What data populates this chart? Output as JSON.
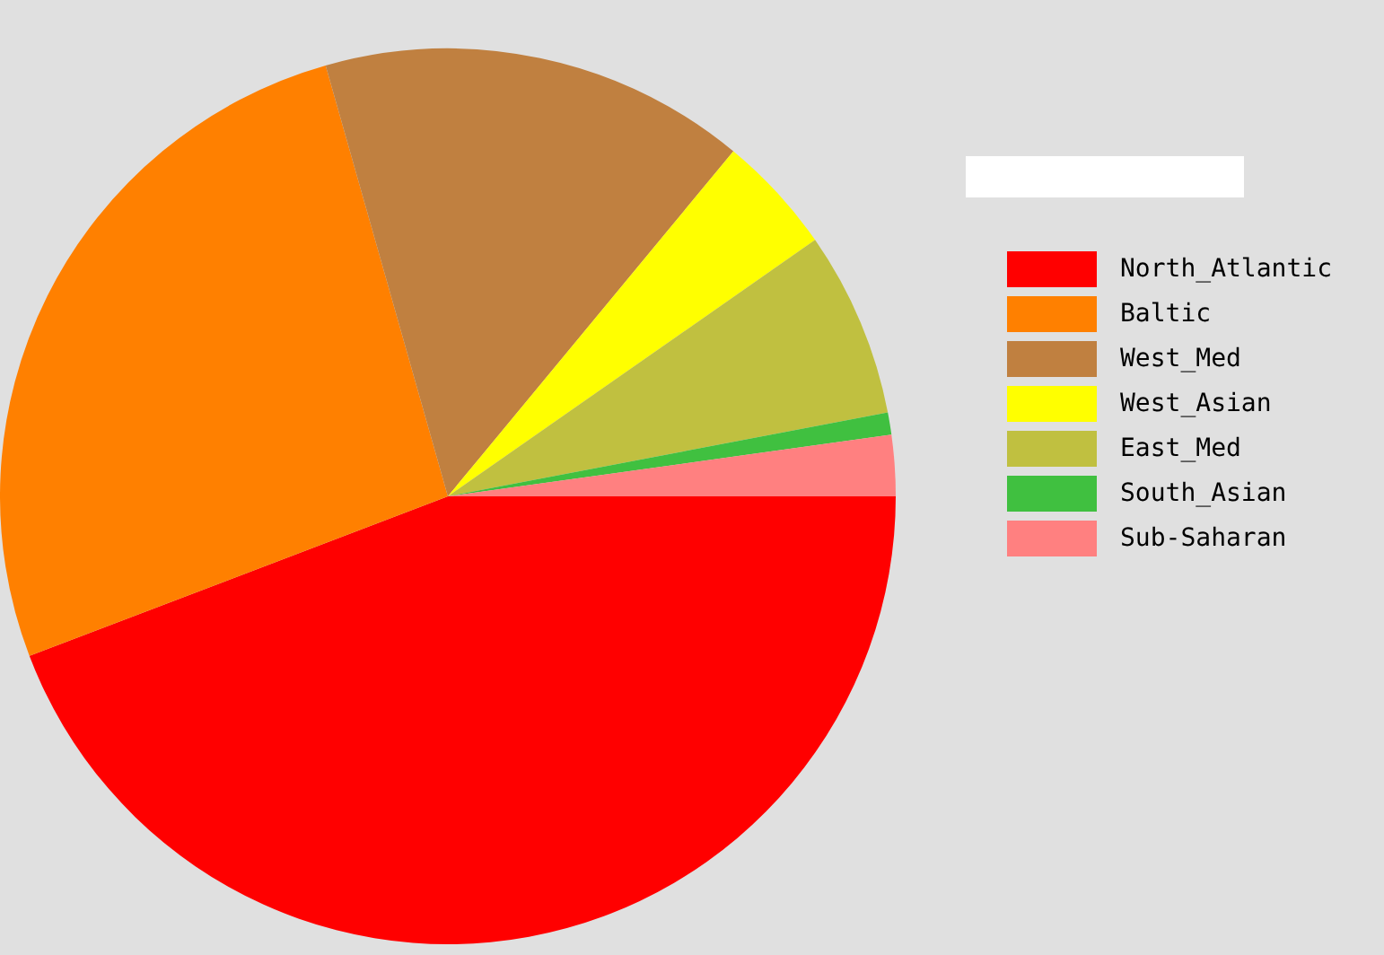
{
  "chart_data": {
    "type": "pie",
    "categories": [
      "North_Atlantic",
      "Baltic",
      "West_Med",
      "West_Asian",
      "East_Med",
      "South_Asian",
      "Sub-Saharan"
    ],
    "values": [
      44.2,
      26.4,
      15.4,
      4.3,
      6.7,
      0.8,
      2.2
    ],
    "colors": [
      "#ff0000",
      "#ff8000",
      "#c08040",
      "#ffff00",
      "#c0c040",
      "#40c040",
      "#ff8080"
    ],
    "legend": "right"
  }
}
